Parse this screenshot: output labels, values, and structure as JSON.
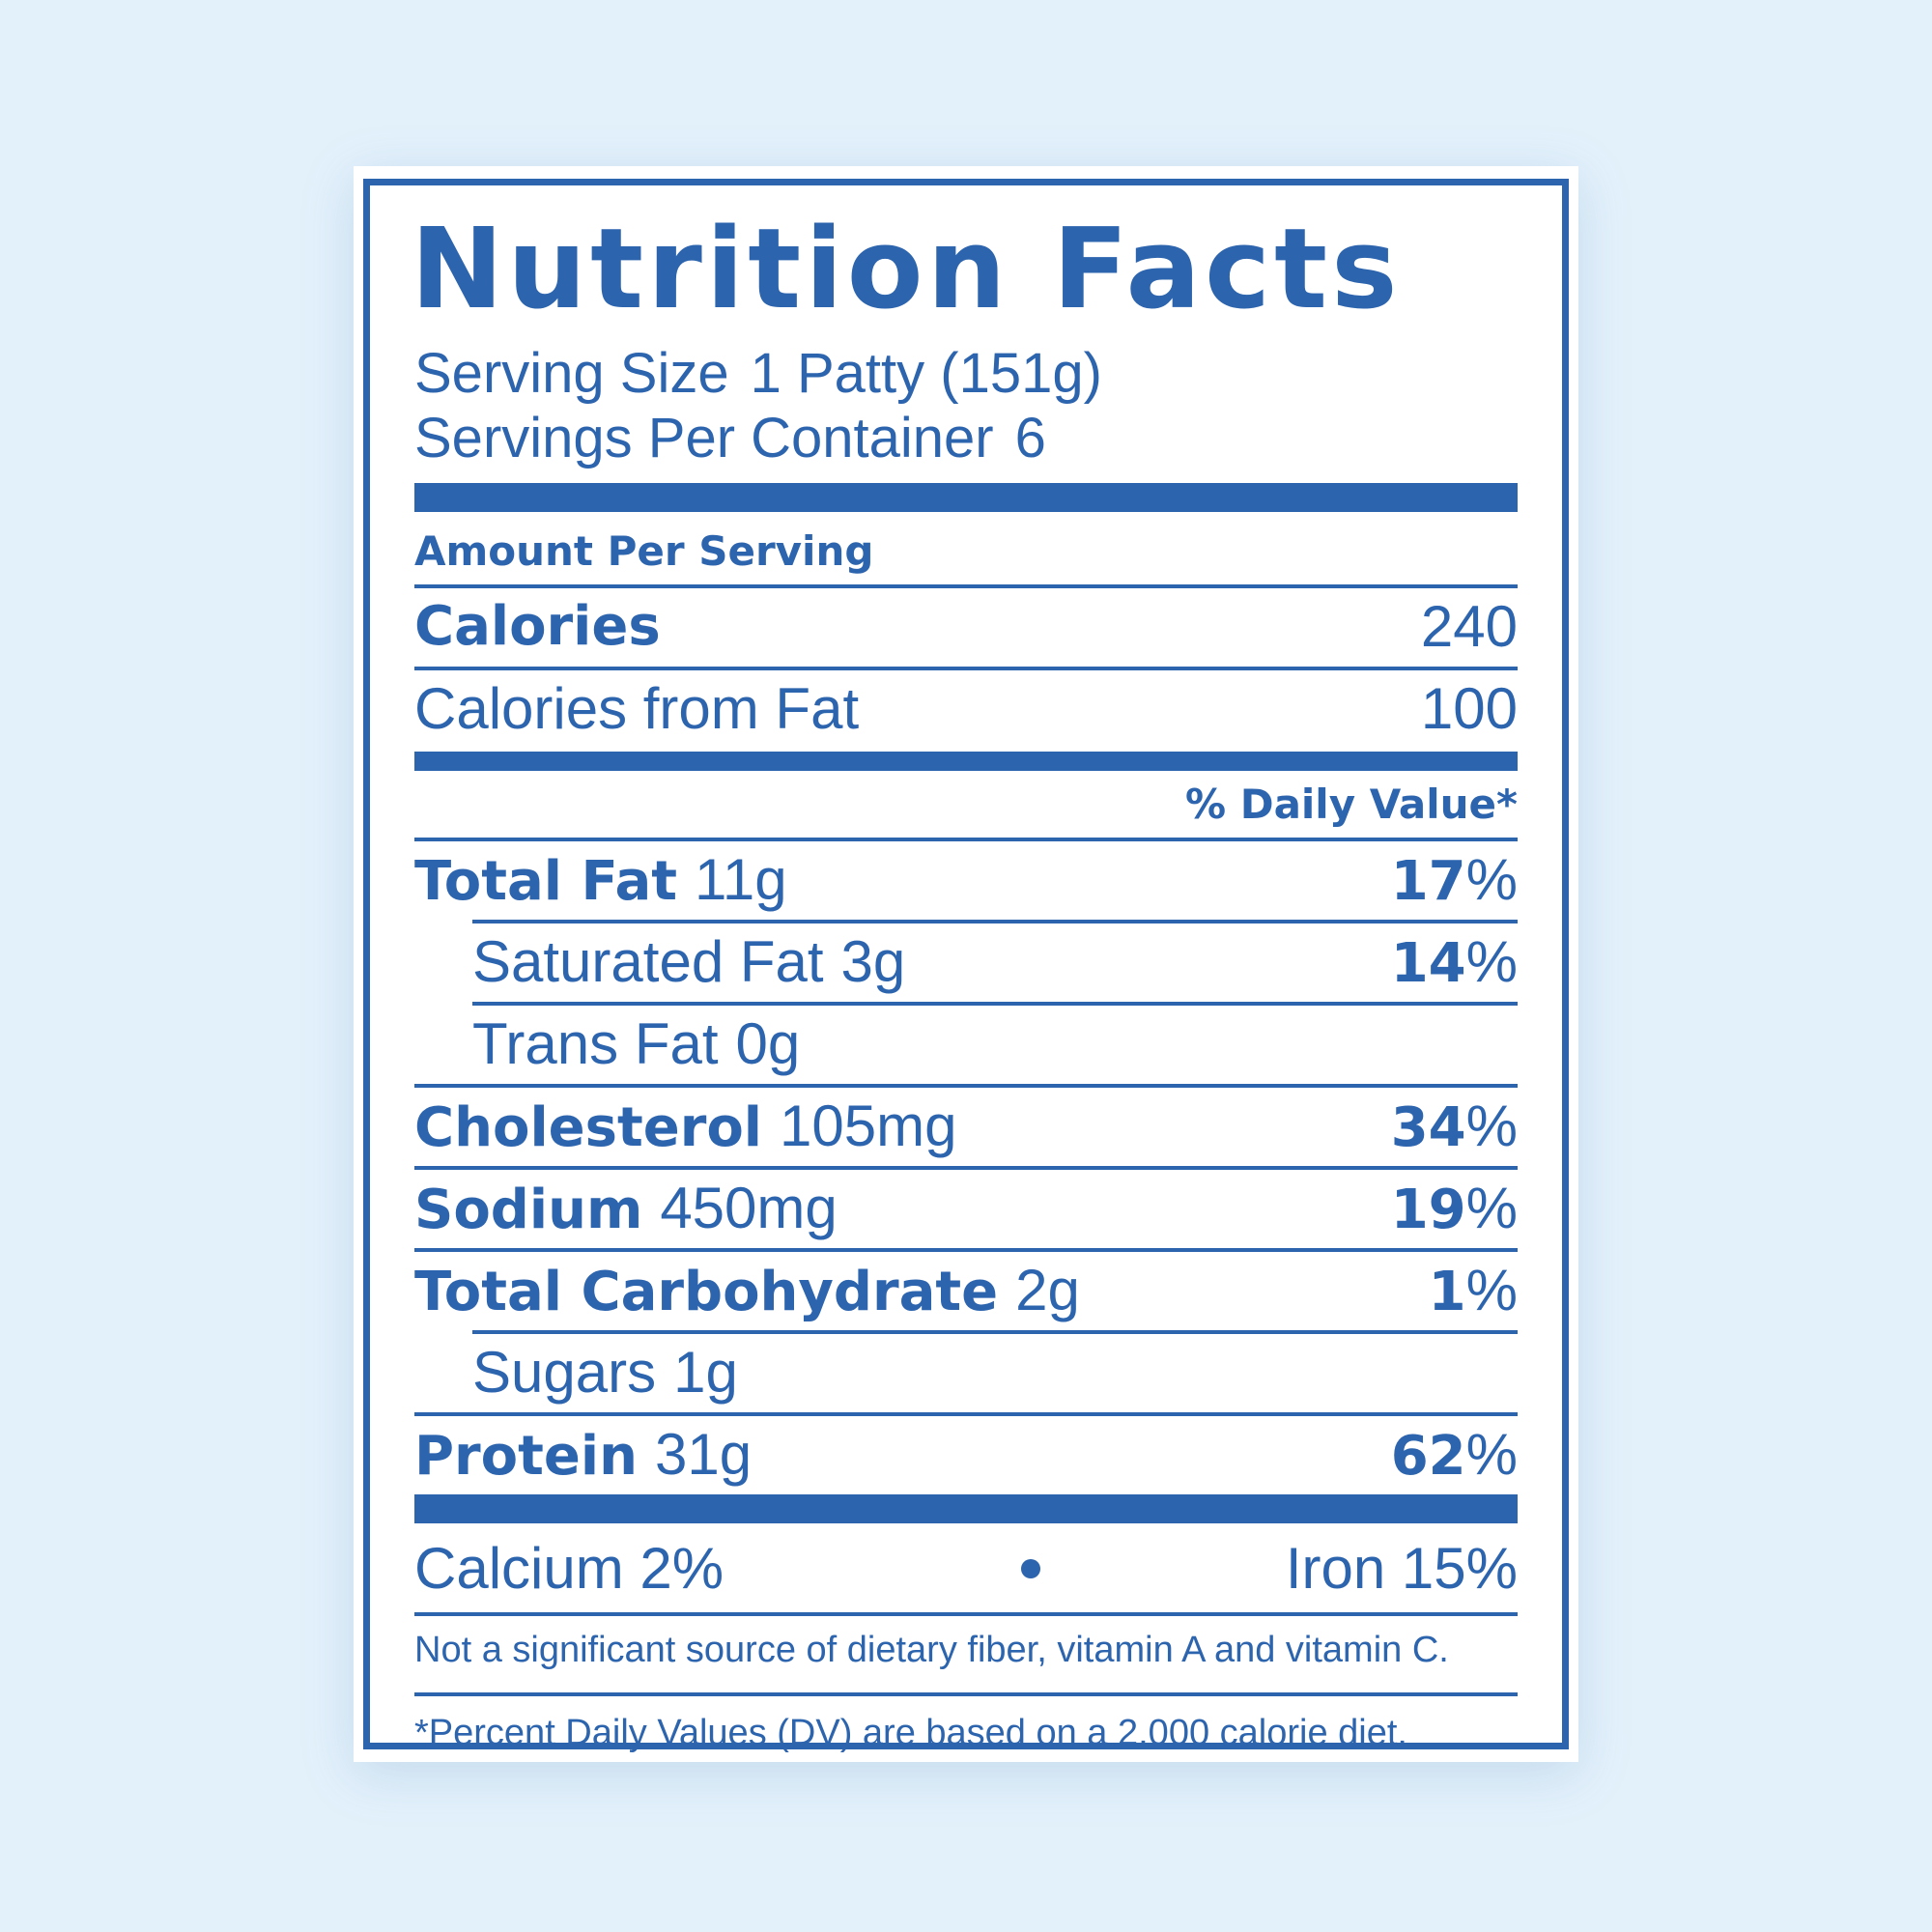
{
  "label": {
    "title": "Nutrition Facts",
    "serving_size_label": "Serving Size",
    "serving_size_value": "1 Patty (151g)",
    "servings_per_container_label": "Servings Per Container",
    "servings_per_container_value": "6",
    "amount_per_serving": "Amount Per Serving",
    "calories_label": "Calories",
    "calories_value": "240",
    "calories_from_fat_label": "Calories from Fat",
    "calories_from_fat_value": "100",
    "daily_value_header": "% Daily Value*",
    "nutrients": [
      {
        "name": "Total Fat",
        "amount": "11g",
        "dv_number": "17",
        "dv_sign": "%"
      },
      {
        "name": "Saturated Fat",
        "amount": "3g",
        "dv_number": "14",
        "dv_sign": "%"
      },
      {
        "name": "Trans Fat",
        "amount": "0g"
      },
      {
        "name": "Cholesterol",
        "amount": "105mg",
        "dv_number": "34",
        "dv_sign": "%"
      },
      {
        "name": "Sodium",
        "amount": "450mg",
        "dv_number": "19",
        "dv_sign": "%"
      },
      {
        "name": "Total Carbohydrate",
        "amount": "2g",
        "dv_number": "1",
        "dv_sign": "%"
      },
      {
        "name": "Sugars",
        "amount": "1g"
      },
      {
        "name": "Protein",
        "amount": "31g",
        "dv_number": "62",
        "dv_sign": "%"
      }
    ],
    "calcium": "Calcium 2%",
    "iron": "Iron 15%",
    "not_significant_note": "Not a significant source of dietary fiber, vitamin A and vitamin C.",
    "footnote": "*Percent Daily Values (DV) are based on a 2,000 calorie diet."
  },
  "colors": {
    "ink": "#2d64ae",
    "background": "#e3f1fb",
    "label_background": "#ffffff"
  }
}
